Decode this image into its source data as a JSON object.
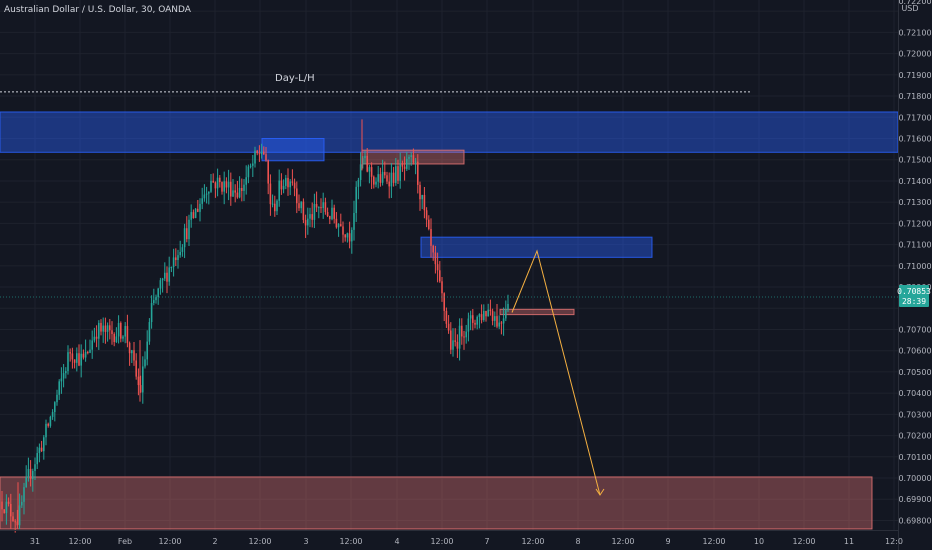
{
  "header": {
    "symbol_title": "Australian Dollar / U.S. Dollar, 30, OANDA"
  },
  "price_axis": {
    "currency": "USD",
    "top_partial_label": "0.72200",
    "labels": [
      "0.72100",
      "0.72000",
      "0.71900",
      "0.71800",
      "0.71700",
      "0.71600",
      "0.71500",
      "0.71400",
      "0.71300",
      "0.71200",
      "0.71100",
      "0.71000",
      "0.70900",
      "0.70700",
      "0.70600",
      "0.70500",
      "0.70400",
      "0.70300",
      "0.70200",
      "0.70100",
      "0.70000",
      "0.69900",
      "0.69800"
    ]
  },
  "last_price_badge": {
    "price": "0.70853",
    "countdown": "28:39",
    "color": "#26a69a"
  },
  "time_axis": {
    "labels": [
      "31",
      "12:00",
      "Feb",
      "12:00",
      "2",
      "12:00",
      "3",
      "12:00",
      "4",
      "12:00",
      "7",
      "12:00",
      "8",
      "12:00",
      "9",
      "12:00",
      "10",
      "12:00",
      "11",
      "12:0"
    ]
  },
  "annotations": {
    "day_level_label": "Day-L/H",
    "day_level_price": 0.7182
  },
  "colors": {
    "background": "#131722",
    "grid": "#1e222d",
    "up": "#26a69a",
    "down": "#ef5350",
    "supply_zone": "#2962ff",
    "demand_zone": "#e57373",
    "projection": "#f5b041",
    "dotted_line": "#d1d4dc"
  },
  "chart_data": {
    "type": "candlestick",
    "instrument": "AUD/USD",
    "timeframe": "30",
    "source": "OANDA",
    "ylim": [
      0.69755,
      0.72215
    ],
    "grid": true,
    "series": [
      {
        "x": 0,
        "y": 0.699
      },
      {
        "x": 18,
        "y": 0.698
      },
      {
        "x": 28,
        "y": 0.7
      },
      {
        "x": 45,
        "y": 0.702
      },
      {
        "x": 58,
        "y": 0.704
      },
      {
        "x": 70,
        "y": 0.706
      },
      {
        "x": 84,
        "y": 0.7055
      },
      {
        "x": 96,
        "y": 0.707
      },
      {
        "x": 110,
        "y": 0.7068
      },
      {
        "x": 125,
        "y": 0.707
      },
      {
        "x": 140,
        "y": 0.704
      },
      {
        "x": 152,
        "y": 0.708
      },
      {
        "x": 165,
        "y": 0.7095
      },
      {
        "x": 180,
        "y": 0.711
      },
      {
        "x": 195,
        "y": 0.7125
      },
      {
        "x": 210,
        "y": 0.714
      },
      {
        "x": 225,
        "y": 0.7138
      },
      {
        "x": 240,
        "y": 0.7135
      },
      {
        "x": 255,
        "y": 0.715
      },
      {
        "x": 263,
        "y": 0.7156
      },
      {
        "x": 272,
        "y": 0.7125
      },
      {
        "x": 282,
        "y": 0.714
      },
      {
        "x": 292,
        "y": 0.7142
      },
      {
        "x": 305,
        "y": 0.712
      },
      {
        "x": 320,
        "y": 0.7128
      },
      {
        "x": 335,
        "y": 0.7122
      },
      {
        "x": 350,
        "y": 0.7115
      },
      {
        "x": 362,
        "y": 0.715
      },
      {
        "x": 375,
        "y": 0.714
      },
      {
        "x": 390,
        "y": 0.7142
      },
      {
        "x": 404,
        "y": 0.7145
      },
      {
        "x": 414,
        "y": 0.715
      },
      {
        "x": 424,
        "y": 0.7125
      },
      {
        "x": 432,
        "y": 0.7105
      },
      {
        "x": 442,
        "y": 0.7085
      },
      {
        "x": 452,
        "y": 0.706
      },
      {
        "x": 462,
        "y": 0.707
      },
      {
        "x": 475,
        "y": 0.7075
      },
      {
        "x": 490,
        "y": 0.708
      },
      {
        "x": 500,
        "y": 0.7072
      },
      {
        "x": 508,
        "y": 0.70853
      }
    ],
    "zones": [
      {
        "kind": "supply",
        "x0": 0,
        "x1": 898,
        "top": 0.71725,
        "bottom": 0.71535
      },
      {
        "kind": "supply",
        "x0": 262,
        "x1": 324,
        "top": 0.716,
        "bottom": 0.71495
      },
      {
        "kind": "demand",
        "x0": 362,
        "x1": 464,
        "top": 0.71545,
        "bottom": 0.7148
      },
      {
        "kind": "supply",
        "x0": 421,
        "x1": 652,
        "top": 0.71135,
        "bottom": 0.7104
      },
      {
        "kind": "demand",
        "x0": 500,
        "x1": 574,
        "top": 0.70795,
        "bottom": 0.7077
      },
      {
        "kind": "demand",
        "x0": 0,
        "x1": 872,
        "top": 0.70005,
        "bottom": 0.6976
      }
    ],
    "projection": [
      {
        "x": 512,
        "y": 0.7078
      },
      {
        "x": 537,
        "y": 0.7107
      },
      {
        "x": 600,
        "y": 0.6992
      }
    ]
  }
}
